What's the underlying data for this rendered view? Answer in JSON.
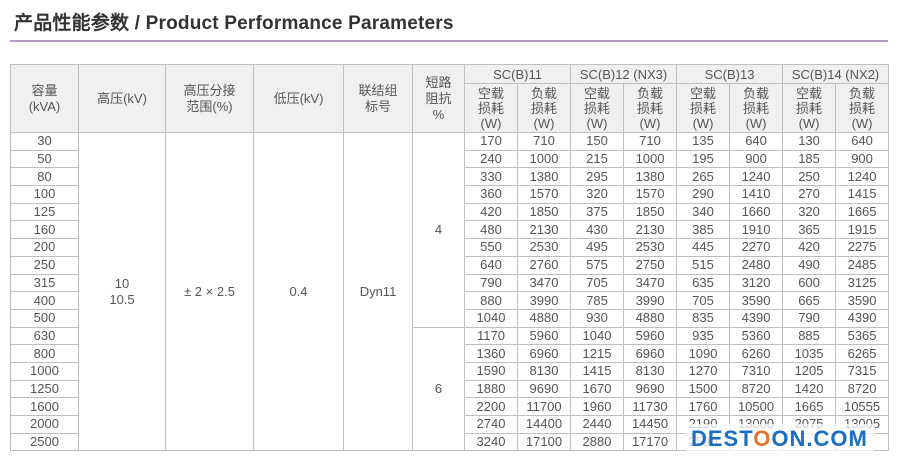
{
  "heading": "产品性能参数 / Product Performance Parameters",
  "columns": {
    "capacity": [
      "容量",
      "(kVA)"
    ],
    "hv": "高压(kV)",
    "tap": [
      "高压分接",
      "范围(%)"
    ],
    "lv": "低压(kV)",
    "vector": [
      "联结组",
      "标号"
    ],
    "impedance": [
      "短路",
      "阻抗",
      "%"
    ],
    "groups": [
      "SC(B)11",
      "SC(B)12 (NX3)",
      "SC(B)13",
      "SC(B)14 (NX2)"
    ],
    "noload": [
      "空载",
      "损耗",
      "(W)"
    ],
    "load": [
      "负载",
      "损耗",
      "(W)"
    ]
  },
  "merged": {
    "hv": [
      "10",
      "10.5"
    ],
    "tap": "± 2 × 2.5",
    "lv": "0.4",
    "vector": "Dyn11",
    "impedance_a": "4",
    "impedance_b": "6"
  },
  "rows": [
    [
      "30",
      "170",
      "710",
      "150",
      "710",
      "135",
      "640",
      "130",
      "640"
    ],
    [
      "50",
      "240",
      "1000",
      "215",
      "1000",
      "195",
      "900",
      "185",
      "900"
    ],
    [
      "80",
      "330",
      "1380",
      "295",
      "1380",
      "265",
      "1240",
      "250",
      "1240"
    ],
    [
      "100",
      "360",
      "1570",
      "320",
      "1570",
      "290",
      "1410",
      "270",
      "1415"
    ],
    [
      "125",
      "420",
      "1850",
      "375",
      "1850",
      "340",
      "1660",
      "320",
      "1665"
    ],
    [
      "160",
      "480",
      "2130",
      "430",
      "2130",
      "385",
      "1910",
      "365",
      "1915"
    ],
    [
      "200",
      "550",
      "2530",
      "495",
      "2530",
      "445",
      "2270",
      "420",
      "2275"
    ],
    [
      "250",
      "640",
      "2760",
      "575",
      "2750",
      "515",
      "2480",
      "490",
      "2485"
    ],
    [
      "315",
      "790",
      "3470",
      "705",
      "3470",
      "635",
      "3120",
      "600",
      "3125"
    ],
    [
      "400",
      "880",
      "3990",
      "785",
      "3990",
      "705",
      "3590",
      "665",
      "3590"
    ],
    [
      "500",
      "1040",
      "4880",
      "930",
      "4880",
      "835",
      "4390",
      "790",
      "4390"
    ],
    [
      "630",
      "1170",
      "5960",
      "1040",
      "5960",
      "935",
      "5360",
      "885",
      "5365"
    ],
    [
      "800",
      "1360",
      "6960",
      "1215",
      "6960",
      "1090",
      "6260",
      "1035",
      "6265"
    ],
    [
      "1000",
      "1590",
      "8130",
      "1415",
      "8130",
      "1270",
      "7310",
      "1205",
      "7315"
    ],
    [
      "1250",
      "1880",
      "9690",
      "1670",
      "9690",
      "1500",
      "8720",
      "1420",
      "8720"
    ],
    [
      "1600",
      "2200",
      "11700",
      "1960",
      "11730",
      "1760",
      "10500",
      "1665",
      "10555"
    ],
    [
      "2000",
      "2740",
      "14400",
      "2440",
      "14450",
      "2190",
      "13000",
      "2075",
      "13005"
    ],
    [
      "2500",
      "3240",
      "17100",
      "2880",
      "17170",
      "2590",
      "",
      "",
      ""
    ]
  ],
  "watermark": {
    "pre": "DEST",
    "o": "O",
    "post": "ON.COM"
  }
}
